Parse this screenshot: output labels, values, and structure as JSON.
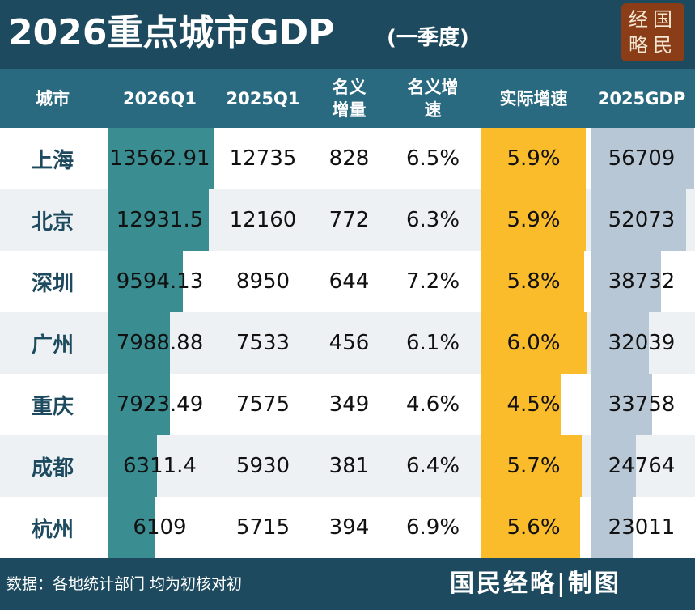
{
  "header": {
    "title": "2026重点城市GDP",
    "subtitle": "(一季度)",
    "logo": [
      "经国",
      "略民"
    ]
  },
  "table": {
    "columns": [
      "城市",
      "2026Q1",
      "2025Q1",
      "名义增量",
      "名义增速",
      "实际增速",
      "2025GDP"
    ],
    "rows": [
      [
        "上海",
        13562.91,
        12735,
        828,
        "6.5%",
        {
          "value": 5.9,
          "label": "5.9%"
        },
        56709
      ],
      [
        "北京",
        12931.5,
        12160,
        772,
        "6.3%",
        {
          "value": 5.9,
          "label": "5.9%"
        },
        52073
      ],
      [
        "深圳",
        9594.13,
        8950,
        644,
        "7.2%",
        {
          "value": 5.8,
          "label": "5.8%"
        },
        38732
      ],
      [
        "广州",
        7988.88,
        7533,
        456,
        "6.1%",
        {
          "value": 6.0,
          "label": "6.0%"
        },
        32039
      ],
      [
        "重庆",
        7923.49,
        7575,
        349,
        "4.6%",
        {
          "value": 4.5,
          "label": "4.5%"
        },
        33758
      ],
      [
        "成都",
        6311.4,
        5930,
        381,
        "6.4%",
        {
          "value": 5.7,
          "label": "5.7%"
        },
        24764
      ],
      [
        "杭州",
        6109,
        5715,
        394,
        "6.9%",
        {
          "value": 5.6,
          "label": "5.6%"
        },
        23011
      ]
    ]
  },
  "footer": {
    "source": "数据：各地统计部门  均为初核对初",
    "brand": "国民经略|制图"
  }
}
